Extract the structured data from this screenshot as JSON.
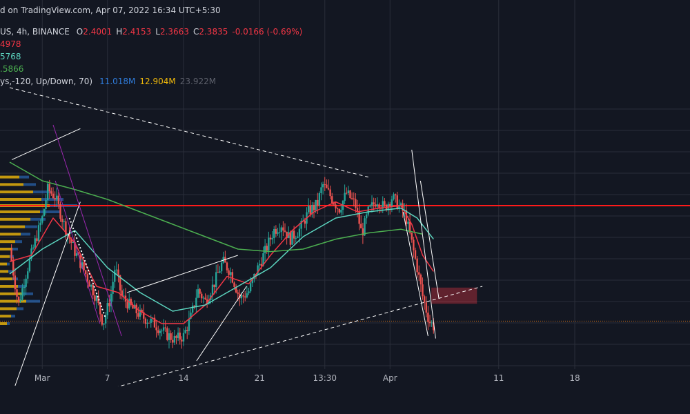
{
  "header": {
    "publish_line": "d on TradingView.com, Apr 07, 2022 16:34 UTC+5:30",
    "symbol_line": "US, 4h, BINANCE",
    "ohlc": {
      "open_label": "O",
      "open": "2.4001",
      "high_label": "H",
      "high": "2.4153",
      "low_label": "L",
      "low": "2.3663",
      "close_label": "C",
      "close": "2.3835",
      "change": "-0.0166 (-0.69%)"
    },
    "ma_lines": [
      {
        "value": "4978",
        "color": "#f23645"
      },
      {
        "value": "5768",
        "color": "#5cd6c0"
      },
      {
        "value": ".5866",
        "color": "#4caf50"
      }
    ],
    "volume_profile": {
      "label": "ys,-120, Up/Down, 70)",
      "values": [
        {
          "value": "11.018M",
          "color": "#2f7bd9"
        },
        {
          "value": "12.904M",
          "color": "#f0b90b"
        },
        {
          "value": "23.922M",
          "color": "#5d606b"
        }
      ]
    }
  },
  "x_axis": {
    "ticks": [
      {
        "label": "Mar",
        "t": 3
      },
      {
        "label": "7",
        "t": 9
      },
      {
        "label": "14",
        "t": 16
      },
      {
        "label": "21",
        "t": 23
      },
      {
        "label": "13:30",
        "t": 29
      },
      {
        "label": "Apr",
        "t": 35
      },
      {
        "label": "11",
        "t": 45
      },
      {
        "label": "18",
        "t": 52
      }
    ]
  },
  "colors": {
    "background": "#131722",
    "up": "#26a69a",
    "down": "#ef5350",
    "ema_fast": "#f23645",
    "ema_mid": "#5cd6c0",
    "ma_slow": "#4caf50",
    "resistance": "#ff1a1a",
    "grid": "#2a2e39",
    "text": "#b2b5be"
  },
  "chart_data": {
    "type": "line",
    "price_range": [
      2.0,
      4.0
    ],
    "grid": true,
    "close_path": [
      {
        "t": 0,
        "p": 3.0
      },
      {
        "t": 0.8,
        "p": 2.55
      },
      {
        "t": 1.5,
        "p": 2.8
      },
      {
        "t": 2.3,
        "p": 3.05
      },
      {
        "t": 3.0,
        "p": 3.25
      },
      {
        "t": 3.5,
        "p": 3.48
      },
      {
        "t": 4.2,
        "p": 3.42
      },
      {
        "t": 5.0,
        "p": 3.2
      },
      {
        "t": 6.0,
        "p": 2.98
      },
      {
        "t": 7.0,
        "p": 2.8
      },
      {
        "t": 8.0,
        "p": 2.6
      },
      {
        "t": 8.6,
        "p": 2.4
      },
      {
        "t": 9.3,
        "p": 2.62
      },
      {
        "t": 9.7,
        "p": 2.86
      },
      {
        "t": 10.3,
        "p": 2.62
      },
      {
        "t": 11.3,
        "p": 2.52
      },
      {
        "t": 12.3,
        "p": 2.45
      },
      {
        "t": 13.3,
        "p": 2.4
      },
      {
        "t": 14.3,
        "p": 2.32
      },
      {
        "t": 15.2,
        "p": 2.27
      },
      {
        "t": 16.0,
        "p": 2.3
      },
      {
        "t": 16.7,
        "p": 2.46
      },
      {
        "t": 17.3,
        "p": 2.67
      },
      {
        "t": 18.0,
        "p": 2.58
      },
      {
        "t": 18.8,
        "p": 2.72
      },
      {
        "t": 19.6,
        "p": 2.9
      },
      {
        "t": 20.3,
        "p": 2.82
      },
      {
        "t": 21.2,
        "p": 2.6
      },
      {
        "t": 22.0,
        "p": 2.66
      },
      {
        "t": 22.7,
        "p": 2.82
      },
      {
        "t": 23.5,
        "p": 2.98
      },
      {
        "t": 24.3,
        "p": 3.15
      },
      {
        "t": 25.0,
        "p": 3.2
      },
      {
        "t": 25.8,
        "p": 3.08
      },
      {
        "t": 26.7,
        "p": 3.16
      },
      {
        "t": 27.5,
        "p": 3.3
      },
      {
        "t": 28.3,
        "p": 3.36
      },
      {
        "t": 28.8,
        "p": 3.52
      },
      {
        "t": 29.5,
        "p": 3.43
      },
      {
        "t": 30.3,
        "p": 3.32
      },
      {
        "t": 31.0,
        "p": 3.45
      },
      {
        "t": 31.8,
        "p": 3.36
      },
      {
        "t": 32.4,
        "p": 3.12
      },
      {
        "t": 33.0,
        "p": 3.3
      },
      {
        "t": 33.8,
        "p": 3.4
      },
      {
        "t": 34.5,
        "p": 3.33
      },
      {
        "t": 35.2,
        "p": 3.42
      },
      {
        "t": 35.8,
        "p": 3.35
      },
      {
        "t": 36.4,
        "p": 3.28
      },
      {
        "t": 37.0,
        "p": 3.05
      },
      {
        "t": 37.5,
        "p": 2.85
      },
      {
        "t": 38.0,
        "p": 2.62
      },
      {
        "t": 38.6,
        "p": 2.42
      },
      {
        "t": 39.0,
        "p": 2.38
      }
    ],
    "series": [
      {
        "name": "4978",
        "color": "#f23645",
        "points": [
          {
            "t": 0,
            "p": 2.9
          },
          {
            "t": 2,
            "p": 2.95
          },
          {
            "t": 4,
            "p": 3.25
          },
          {
            "t": 6,
            "p": 3.05
          },
          {
            "t": 8,
            "p": 2.7
          },
          {
            "t": 10,
            "p": 2.65
          },
          {
            "t": 12,
            "p": 2.5
          },
          {
            "t": 14,
            "p": 2.4
          },
          {
            "t": 16,
            "p": 2.4
          },
          {
            "t": 18,
            "p": 2.55
          },
          {
            "t": 20,
            "p": 2.78
          },
          {
            "t": 22,
            "p": 2.72
          },
          {
            "t": 24,
            "p": 2.95
          },
          {
            "t": 26,
            "p": 3.15
          },
          {
            "t": 28,
            "p": 3.3
          },
          {
            "t": 30,
            "p": 3.38
          },
          {
            "t": 32,
            "p": 3.3
          },
          {
            "t": 34,
            "p": 3.33
          },
          {
            "t": 36,
            "p": 3.35
          },
          {
            "t": 37,
            "p": 3.2
          },
          {
            "t": 38,
            "p": 2.95
          },
          {
            "t": 39,
            "p": 2.82
          }
        ]
      },
      {
        "name": "5768",
        "color": "#5cd6c0",
        "points": [
          {
            "t": 0,
            "p": 2.8
          },
          {
            "t": 3,
            "p": 3.0
          },
          {
            "t": 6,
            "p": 3.15
          },
          {
            "t": 9,
            "p": 2.85
          },
          {
            "t": 12,
            "p": 2.65
          },
          {
            "t": 15,
            "p": 2.5
          },
          {
            "t": 18,
            "p": 2.55
          },
          {
            "t": 21,
            "p": 2.7
          },
          {
            "t": 24,
            "p": 2.85
          },
          {
            "t": 27,
            "p": 3.1
          },
          {
            "t": 30,
            "p": 3.25
          },
          {
            "t": 33,
            "p": 3.3
          },
          {
            "t": 36,
            "p": 3.33
          },
          {
            "t": 37.5,
            "p": 3.25
          },
          {
            "t": 39,
            "p": 3.08
          }
        ]
      },
      {
        "name": ".5866",
        "color": "#4caf50",
        "points": [
          {
            "t": 0,
            "p": 3.7
          },
          {
            "t": 3,
            "p": 3.55
          },
          {
            "t": 6,
            "p": 3.48
          },
          {
            "t": 9,
            "p": 3.4
          },
          {
            "t": 12,
            "p": 3.3
          },
          {
            "t": 15,
            "p": 3.2
          },
          {
            "t": 18,
            "p": 3.1
          },
          {
            "t": 21,
            "p": 3.0
          },
          {
            "t": 24,
            "p": 2.98
          },
          {
            "t": 27,
            "p": 3.0
          },
          {
            "t": 30,
            "p": 3.08
          },
          {
            "t": 33,
            "p": 3.13
          },
          {
            "t": 36,
            "p": 3.16
          },
          {
            "t": 38,
            "p": 3.12
          }
        ]
      }
    ],
    "drawings": [
      {
        "name": "resistance-line",
        "kind": "horizontal",
        "color": "#ff1a1a",
        "p": 3.35
      },
      {
        "name": "current-price-line",
        "kind": "horizontal-dotted",
        "color": "#f57f17",
        "p": 2.42
      },
      {
        "name": "descending-trendline",
        "kind": "dashed",
        "color": "#ffffff",
        "from": {
          "t": 0.0,
          "p": 4.3
        },
        "to": {
          "t": 33.0,
          "p": 3.58
        }
      },
      {
        "name": "ascending-trendline",
        "kind": "dashed",
        "color": "#ffffff",
        "from": {
          "t": 2.0,
          "p": 1.7
        },
        "to": {
          "t": 43.5,
          "p": 2.7
        }
      },
      {
        "name": "rising-wedge-upper",
        "kind": "solid",
        "color": "#ffffff",
        "from": {
          "t": 0.2,
          "p": 3.72
        },
        "to": {
          "t": 6.5,
          "p": 3.97
        }
      },
      {
        "name": "rising-wedge-lower",
        "kind": "solid",
        "color": "#ffffff",
        "from": {
          "t": 0.5,
          "p": 1.9
        },
        "to": {
          "t": 6.5,
          "p": 3.38
        }
      },
      {
        "name": "falling-channel-upper",
        "kind": "solid",
        "color": "#9c27b0",
        "from": {
          "t": 4.0,
          "p": 4.0
        },
        "to": {
          "t": 10.3,
          "p": 2.3
        }
      },
      {
        "name": "falling-channel-lower",
        "kind": "solid",
        "color": "#9c27b0",
        "from": {
          "t": 4.2,
          "p": 3.55
        },
        "to": {
          "t": 8.3,
          "p": 2.4
        }
      },
      {
        "name": "pullback-dotted",
        "kind": "dotted",
        "color": "#ffffff",
        "from": {
          "t": 5.5,
          "p": 3.25
        },
        "to": {
          "t": 8.8,
          "p": 2.45
        }
      },
      {
        "name": "bear-flag-upper",
        "kind": "solid",
        "color": "#ffffff",
        "from": {
          "t": 10.8,
          "p": 2.65
        },
        "to": {
          "t": 21.0,
          "p": 2.95
        }
      },
      {
        "name": "bear-flag-lower",
        "kind": "solid",
        "color": "#ffffff",
        "from": {
          "t": 17.2,
          "p": 2.1
        },
        "to": {
          "t": 21.8,
          "p": 2.7
        }
      },
      {
        "name": "drop-leg-1",
        "kind": "solid",
        "color": "#ffffff",
        "from": {
          "t": 37.0,
          "p": 3.8
        },
        "to": {
          "t": 39.2,
          "p": 2.28
        }
      },
      {
        "name": "drop-leg-2",
        "kind": "solid",
        "color": "#ffffff",
        "from": {
          "t": 36.2,
          "p": 3.3
        },
        "to": {
          "t": 38.5,
          "p": 2.3
        }
      },
      {
        "name": "drop-leg-3",
        "kind": "solid",
        "color": "#ffffff",
        "from": {
          "t": 37.8,
          "p": 3.55
        },
        "to": {
          "t": 39.5,
          "p": 2.6
        }
      }
    ],
    "zones": [
      {
        "name": "supply-zone",
        "color": "#f23645",
        "t_start": 38.8,
        "t_end": 43.0,
        "p_low": 2.56,
        "p_high": 2.69
      }
    ],
    "volume_profile": [
      {
        "p": 3.58,
        "up": 28,
        "dn": 14
      },
      {
        "p": 3.52,
        "up": 34,
        "dn": 18
      },
      {
        "p": 3.46,
        "up": 48,
        "dn": 26
      },
      {
        "p": 3.4,
        "up": 60,
        "dn": 32
      },
      {
        "p": 3.35,
        "up": 72,
        "dn": 40
      },
      {
        "p": 3.3,
        "up": 58,
        "dn": 30
      },
      {
        "p": 3.24,
        "up": 44,
        "dn": 22
      },
      {
        "p": 3.18,
        "up": 36,
        "dn": 18
      },
      {
        "p": 3.12,
        "up": 30,
        "dn": 14
      },
      {
        "p": 3.06,
        "up": 22,
        "dn": 10
      },
      {
        "p": 3.0,
        "up": 18,
        "dn": 8
      },
      {
        "p": 2.94,
        "up": 14,
        "dn": 6
      },
      {
        "p": 2.88,
        "up": 10,
        "dn": 4
      },
      {
        "p": 2.82,
        "up": 12,
        "dn": 6
      },
      {
        "p": 2.76,
        "up": 18,
        "dn": 8
      },
      {
        "p": 2.7,
        "up": 26,
        "dn": 12
      },
      {
        "p": 2.64,
        "up": 32,
        "dn": 16
      },
      {
        "p": 2.58,
        "up": 38,
        "dn": 20
      },
      {
        "p": 2.52,
        "up": 24,
        "dn": 10
      },
      {
        "p": 2.46,
        "up": 16,
        "dn": 6
      },
      {
        "p": 2.4,
        "up": 10,
        "dn": 4
      }
    ]
  }
}
